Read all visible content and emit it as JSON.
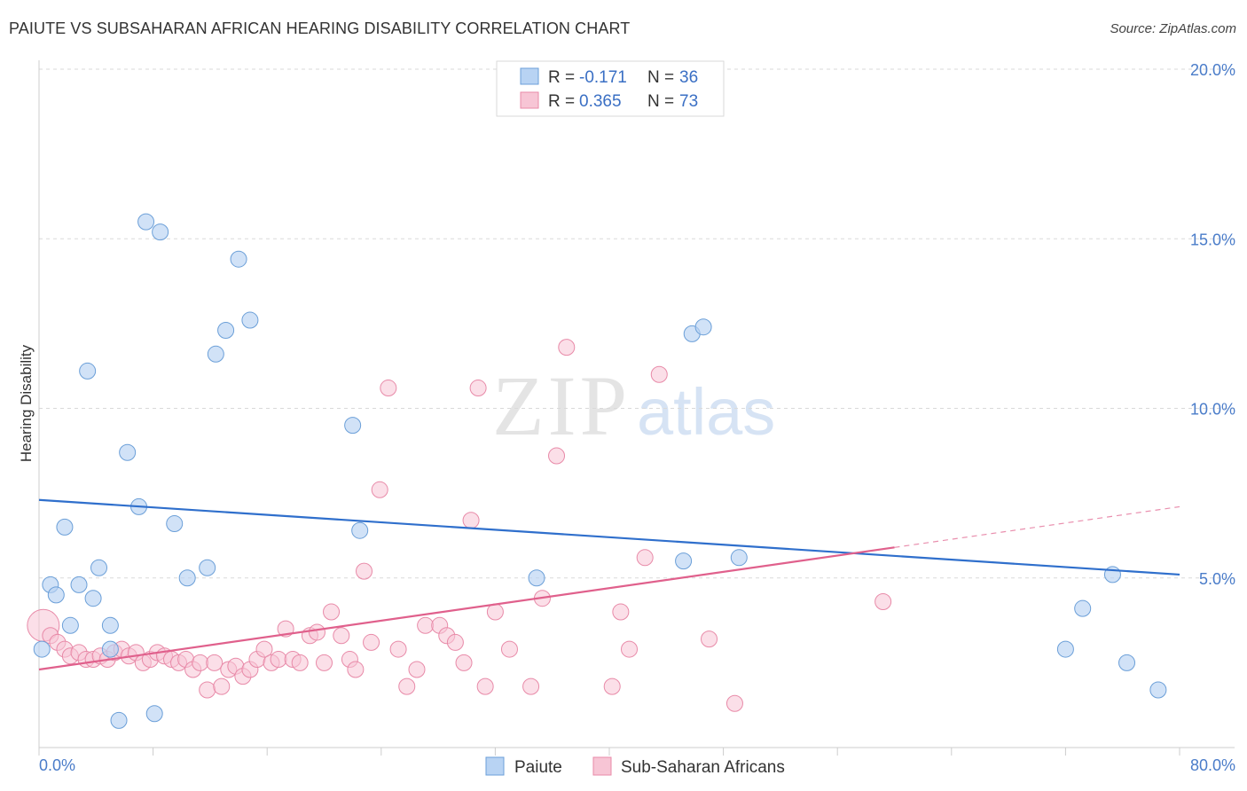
{
  "header": {
    "title": "PAIUTE VS SUBSAHARAN AFRICAN HEARING DISABILITY CORRELATION CHART",
    "source": "Source: ZipAtlas.com"
  },
  "watermark": {
    "zip": "ZIP",
    "atlas": "atlas"
  },
  "legend": {
    "items": [
      {
        "r_label": "R = ",
        "r_value": "-0.171",
        "n_label": "N = ",
        "n_value": "36"
      },
      {
        "r_label": "R = ",
        "r_value": "0.365",
        "n_label": "N = ",
        "n_value": "73"
      }
    ]
  },
  "bottom_legend": {
    "series1": "Paiute",
    "series2": "Sub-Saharan Africans"
  },
  "colors": {
    "paiute_fill": "#b8d3f3",
    "paiute_stroke": "#6b9fd8",
    "paiute_line": "#2f6fcc",
    "ssa_fill": "#f7c5d5",
    "ssa_stroke": "#e88aa8",
    "ssa_line": "#e0608c",
    "axis_text": "#4a7cc9",
    "grid": "#d9d9d9"
  },
  "chart_data": {
    "type": "scatter",
    "title": "PAIUTE VS SUBSAHARAN AFRICAN HEARING DISABILITY CORRELATION CHART",
    "xlabel": "",
    "ylabel": "Hearing Disability",
    "xlim": [
      0,
      80
    ],
    "ylim": [
      0,
      20
    ],
    "x_tick_labels": [
      "0.0%",
      "80.0%"
    ],
    "y_ticks": [
      5,
      10,
      15,
      20
    ],
    "y_tick_labels": [
      "5.0%",
      "10.0%",
      "15.0%",
      "20.0%"
    ],
    "grid": true,
    "series": [
      {
        "name": "Paiute",
        "r": -0.171,
        "n": 36,
        "trend": {
          "x": [
            0,
            80
          ],
          "y": [
            7.3,
            5.1
          ]
        },
        "points": [
          [
            0.2,
            2.9
          ],
          [
            0.8,
            4.8
          ],
          [
            1.2,
            4.5
          ],
          [
            1.8,
            6.5
          ],
          [
            2.2,
            3.6
          ],
          [
            2.8,
            4.8
          ],
          [
            3.4,
            11.1
          ],
          [
            3.8,
            4.4
          ],
          [
            4.2,
            5.3
          ],
          [
            5.0,
            3.6
          ],
          [
            5.0,
            2.9
          ],
          [
            5.6,
            0.8
          ],
          [
            6.2,
            8.7
          ],
          [
            7.0,
            7.1
          ],
          [
            7.5,
            15.5
          ],
          [
            8.1,
            1.0
          ],
          [
            8.5,
            15.2
          ],
          [
            9.5,
            6.6
          ],
          [
            10.4,
            5.0
          ],
          [
            11.8,
            5.3
          ],
          [
            12.4,
            11.6
          ],
          [
            13.1,
            12.3
          ],
          [
            14.0,
            14.4
          ],
          [
            14.8,
            12.6
          ],
          [
            22.0,
            9.5
          ],
          [
            22.5,
            6.4
          ],
          [
            34.9,
            5.0
          ],
          [
            45.2,
            5.5
          ],
          [
            45.8,
            12.2
          ],
          [
            46.6,
            12.4
          ],
          [
            49.1,
            5.6
          ],
          [
            72.0,
            2.9
          ],
          [
            73.2,
            4.1
          ],
          [
            75.3,
            5.1
          ],
          [
            76.3,
            2.5
          ],
          [
            78.5,
            1.7
          ]
        ]
      },
      {
        "name": "Sub-Saharan Africans",
        "r": 0.365,
        "n": 73,
        "trend_solid": {
          "x": [
            0,
            60
          ],
          "y": [
            2.3,
            5.9
          ]
        },
        "trend_dashed": {
          "x": [
            60,
            80
          ],
          "y": [
            5.9,
            7.1
          ]
        },
        "points": [
          [
            0.3,
            3.6
          ],
          [
            0.8,
            3.3
          ],
          [
            1.3,
            3.1
          ],
          [
            1.8,
            2.9
          ],
          [
            2.2,
            2.7
          ],
          [
            2.8,
            2.8
          ],
          [
            3.3,
            2.6
          ],
          [
            3.8,
            2.6
          ],
          [
            4.3,
            2.7
          ],
          [
            4.8,
            2.6
          ],
          [
            5.3,
            2.8
          ],
          [
            5.8,
            2.9
          ],
          [
            6.3,
            2.7
          ],
          [
            6.8,
            2.8
          ],
          [
            7.3,
            2.5
          ],
          [
            7.8,
            2.6
          ],
          [
            8.3,
            2.8
          ],
          [
            8.8,
            2.7
          ],
          [
            9.3,
            2.6
          ],
          [
            9.8,
            2.5
          ],
          [
            10.3,
            2.6
          ],
          [
            10.8,
            2.3
          ],
          [
            11.3,
            2.5
          ],
          [
            11.8,
            1.7
          ],
          [
            12.3,
            2.5
          ],
          [
            12.8,
            1.8
          ],
          [
            13.3,
            2.3
          ],
          [
            13.8,
            2.4
          ],
          [
            14.3,
            2.1
          ],
          [
            14.8,
            2.3
          ],
          [
            15.3,
            2.6
          ],
          [
            15.8,
            2.9
          ],
          [
            16.3,
            2.5
          ],
          [
            16.8,
            2.6
          ],
          [
            17.3,
            3.5
          ],
          [
            17.8,
            2.6
          ],
          [
            18.3,
            2.5
          ],
          [
            19.0,
            3.3
          ],
          [
            19.5,
            3.4
          ],
          [
            20.0,
            2.5
          ],
          [
            20.5,
            4.0
          ],
          [
            21.2,
            3.3
          ],
          [
            21.8,
            2.6
          ],
          [
            22.2,
            2.3
          ],
          [
            22.8,
            5.2
          ],
          [
            23.3,
            3.1
          ],
          [
            23.9,
            7.6
          ],
          [
            24.5,
            10.6
          ],
          [
            25.2,
            2.9
          ],
          [
            25.8,
            1.8
          ],
          [
            26.5,
            2.3
          ],
          [
            27.1,
            3.6
          ],
          [
            28.1,
            3.6
          ],
          [
            28.6,
            3.3
          ],
          [
            29.2,
            3.1
          ],
          [
            29.8,
            2.5
          ],
          [
            30.3,
            6.7
          ],
          [
            30.8,
            10.6
          ],
          [
            31.3,
            1.8
          ],
          [
            32.0,
            4.0
          ],
          [
            33.0,
            2.9
          ],
          [
            34.5,
            1.8
          ],
          [
            35.3,
            4.4
          ],
          [
            36.3,
            8.6
          ],
          [
            37.0,
            11.8
          ],
          [
            40.2,
            1.8
          ],
          [
            40.8,
            4.0
          ],
          [
            41.4,
            2.9
          ],
          [
            42.5,
            5.6
          ],
          [
            43.5,
            11.0
          ],
          [
            47.0,
            3.2
          ],
          [
            48.8,
            1.3
          ],
          [
            59.2,
            4.3
          ]
        ]
      }
    ]
  }
}
